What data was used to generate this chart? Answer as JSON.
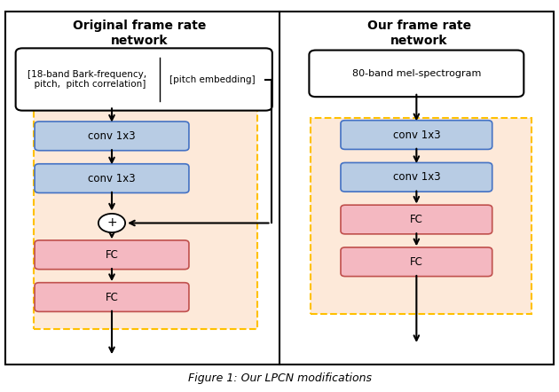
{
  "title_left": "Original frame rate\nnetwork",
  "title_right": "Our frame rate\nnetwork",
  "caption": "Figure 1: Our LPCN modifications",
  "left_input_box1": "[18-band Bark-frequency,\n  pitch,  pitch correlation]",
  "left_input_box2": "[pitch embedding]",
  "right_input_box": "80-band mel-spectrogram",
  "conv_label": "conv 1x3",
  "fc_label": "FC",
  "blue_fill": "#b8cce4",
  "blue_edge": "#4472c4",
  "red_fill": "#f4b8c1",
  "red_edge": "#c0504d",
  "orange_bg": "#fde9d9",
  "orange_edge": "#ffc000",
  "white": "#ffffff",
  "black": "#000000"
}
